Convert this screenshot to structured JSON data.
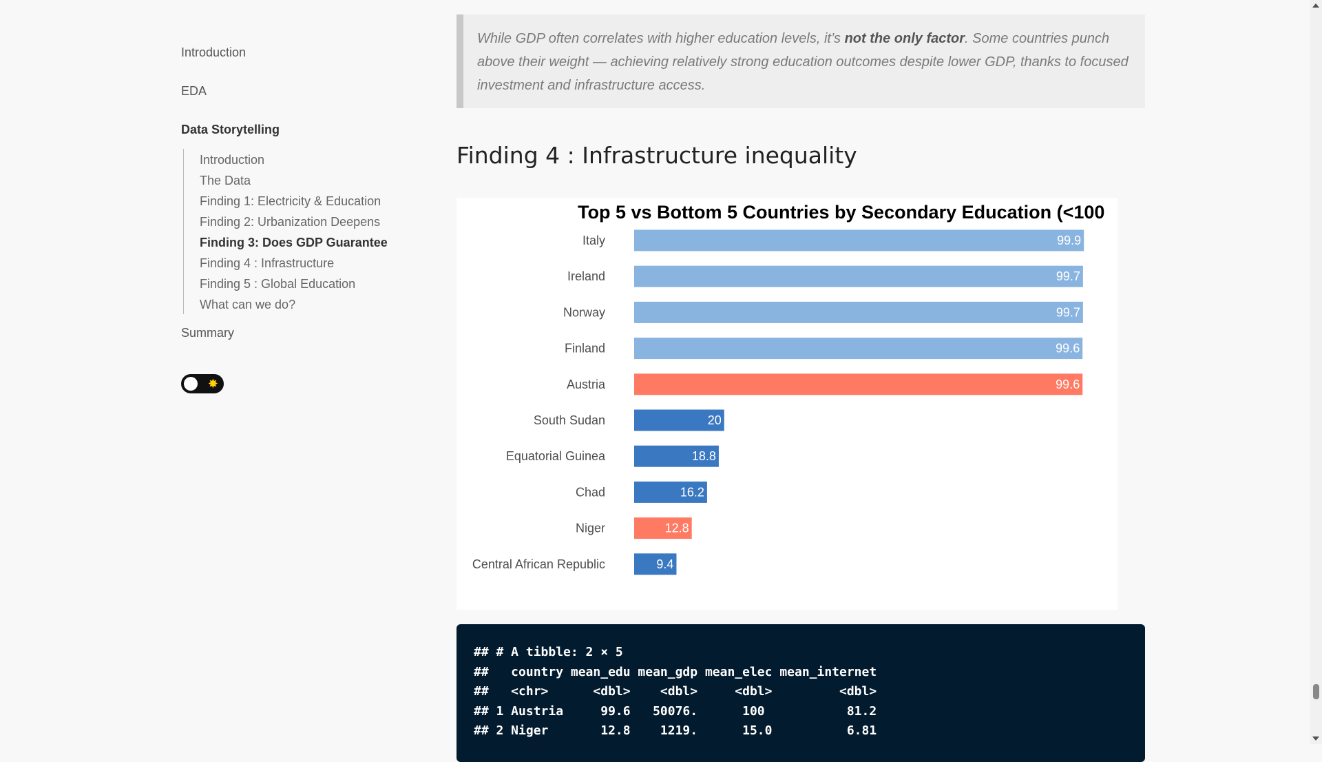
{
  "sidebar": {
    "top_items": [
      {
        "label": "Introduction"
      },
      {
        "label": "EDA"
      },
      {
        "label": "Data Storytelling"
      },
      {
        "label": "Summary"
      }
    ],
    "sub_items": [
      {
        "label": "Introduction"
      },
      {
        "label": "The Data"
      },
      {
        "label": "Finding 1: Electricity & Education"
      },
      {
        "label": "Finding 2: Urbanization Deepens"
      },
      {
        "label": "Finding 3: Does GDP Guarantee"
      },
      {
        "label": "Finding 4 : Infrastructure"
      },
      {
        "label": "Finding 5 : Global Education"
      },
      {
        "label": "What can we do?"
      }
    ],
    "theme_toggle": {
      "icon": "sun-icon",
      "state": "light"
    }
  },
  "quote": {
    "part1": "While GDP often correlates with higher education levels, it’s ",
    "bold": "not the only factor",
    "part2": ". Some countries punch above their weight — achieving relatively strong education outcomes despite lower GDP, thanks to focused investment and infrastructure access."
  },
  "section_heading": "Finding 4 : Infrastructure inequality",
  "chart_data": {
    "type": "bar",
    "orientation": "horizontal",
    "title": "Top 5 vs Bottom 5 Countries by Secondary Education (<100",
    "categories": [
      "Italy",
      "Ireland",
      "Norway",
      "Finland",
      "Austria",
      "South Sudan",
      "Equatorial Guinea",
      "Chad",
      "Niger",
      "Central African Republic"
    ],
    "values": [
      99.9,
      99.7,
      99.7,
      99.6,
      99.6,
      20,
      18.8,
      16.2,
      12.8,
      9.4
    ],
    "value_labels": [
      "99.9",
      "99.7",
      "99.7",
      "99.6",
      "99.6",
      "20",
      "18.8",
      "16.2",
      "12.8",
      "9.4"
    ],
    "colors": [
      "#8ab4e0",
      "#8ab4e0",
      "#8ab4e0",
      "#8ab4e0",
      "#ff7a63",
      "#3b78c2",
      "#3b78c2",
      "#3b78c2",
      "#ff7a63",
      "#3b78c2"
    ],
    "xlim": [
      0,
      104
    ],
    "grid": false,
    "legend": "none"
  },
  "code_output": {
    "lines": [
      "## # A tibble: 2 × 5",
      "##   country mean_edu mean_gdp mean_elec mean_internet",
      "##   <chr>      <dbl>    <dbl>     <dbl>         <dbl>",
      "## 1 Austria     99.6   50076.      100           81.2",
      "## 2 Niger       12.8    1219.      15.0          6.81"
    ]
  }
}
